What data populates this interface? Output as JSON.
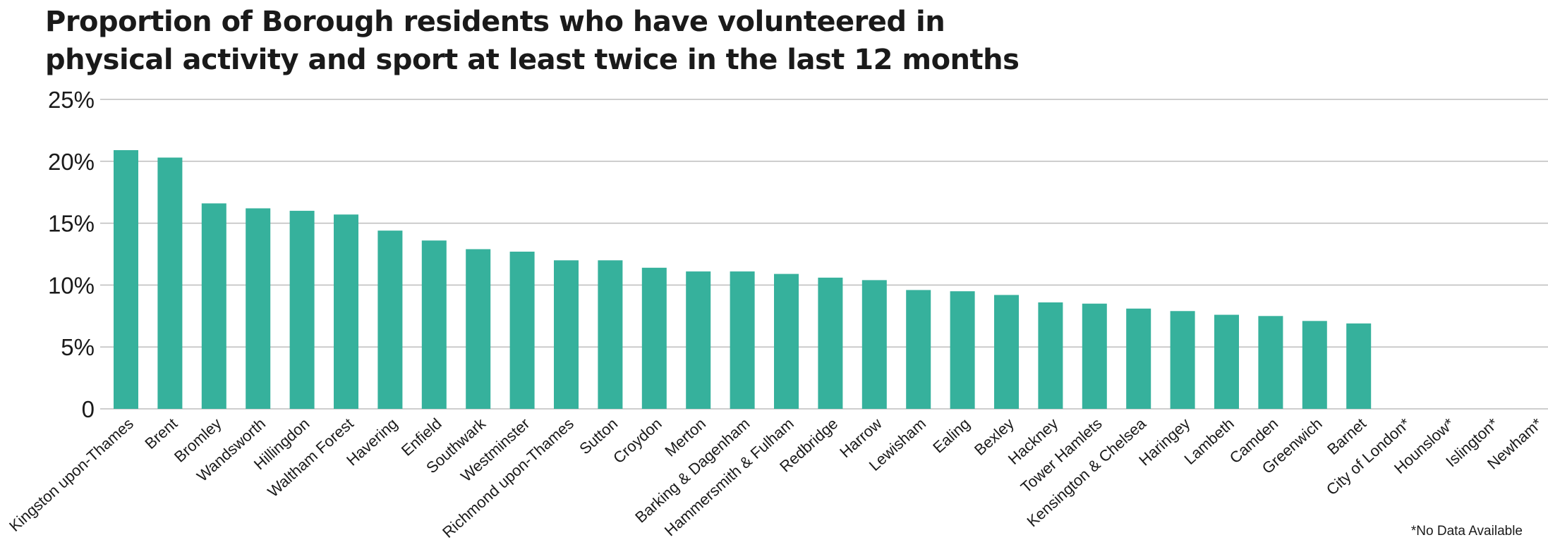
{
  "chart_data": {
    "type": "bar",
    "title_lines": [
      "Proportion of Borough residents who have volunteered in",
      "physical activity and sport at least twice in the last 12 months"
    ],
    "xlabel": "",
    "ylabel": "",
    "ylim": [
      0,
      25
    ],
    "yticks": [
      0,
      5,
      10,
      15,
      20,
      25
    ],
    "ytick_labels": [
      "0",
      "5%",
      "10%",
      "15%",
      "20%",
      "25%"
    ],
    "grid": true,
    "bar_color": "#36b19c",
    "categories": [
      "Kingston upon-Thames",
      "Brent",
      "Bromley",
      "Wandsworth",
      "Hillingdon",
      "Waltham Forest",
      "Havering",
      "Enfield",
      "Southwark",
      "Westminster",
      "Richmond upon-Thames",
      "Sutton",
      "Croydon",
      "Merton",
      "Barking & Dagenham",
      "Hammersmith & Fulham",
      "Redbridge",
      "Harrow",
      "Lewisham",
      "Ealing",
      "Bexley",
      "Hackney",
      "Tower Hamlets",
      "Kensington & Chelsea",
      "Haringey",
      "Lambeth",
      "Camden",
      "Greenwich",
      "Barnet",
      "City of London*",
      "Hounslow*",
      "Islington*",
      "Newham*"
    ],
    "values": [
      20.9,
      20.3,
      16.6,
      16.2,
      16.0,
      15.7,
      14.4,
      13.6,
      12.9,
      12.7,
      12.0,
      12.0,
      11.4,
      11.1,
      11.1,
      10.9,
      10.6,
      10.4,
      9.6,
      9.5,
      9.2,
      8.6,
      8.5,
      8.1,
      7.9,
      7.6,
      7.5,
      7.1,
      6.9,
      null,
      null,
      null,
      null
    ],
    "footnote": "*No Data Available"
  }
}
